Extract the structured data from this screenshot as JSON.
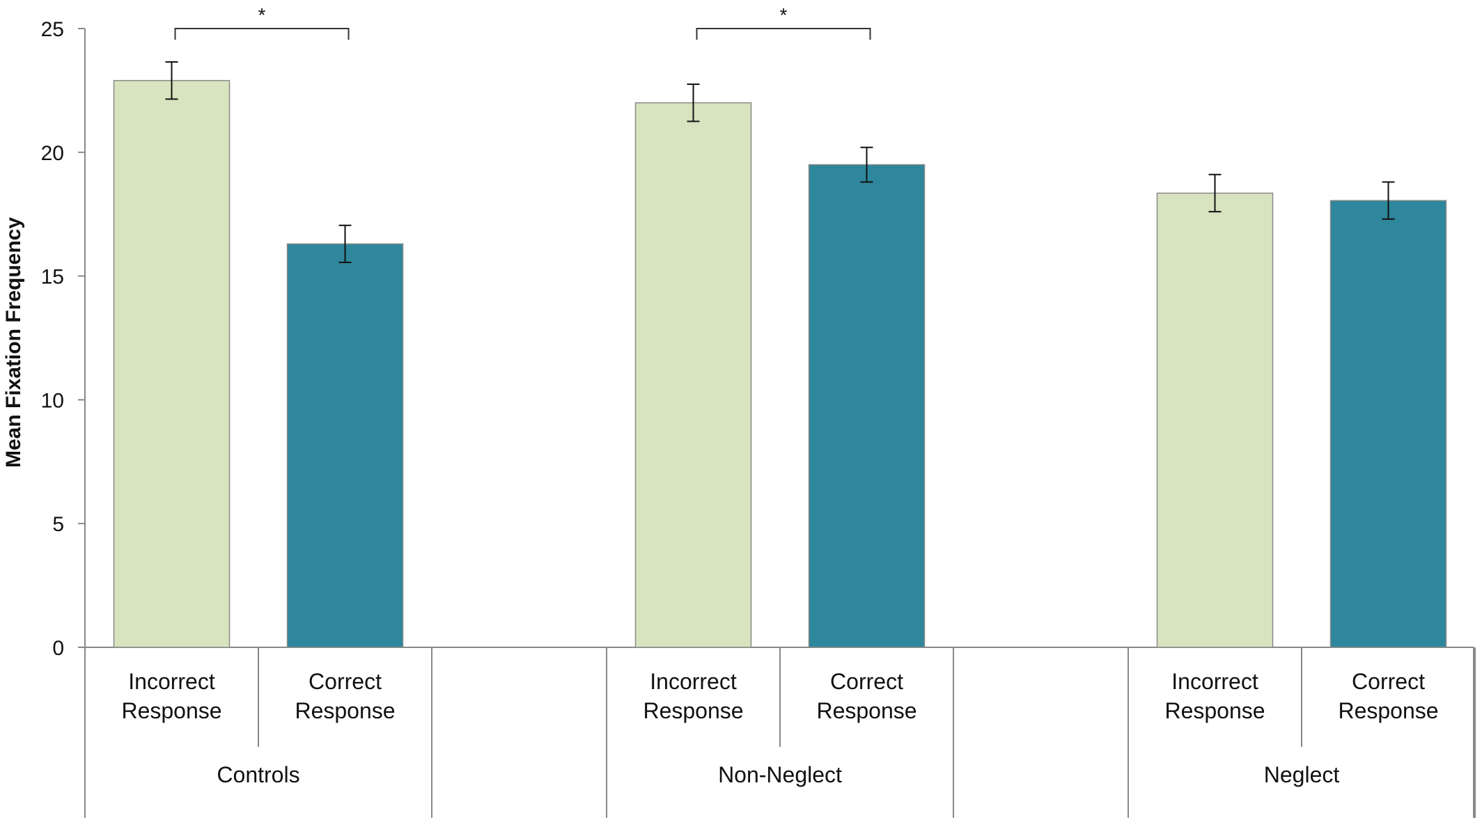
{
  "chart_data": {
    "type": "bar",
    "title": "",
    "xlabel": "",
    "ylabel": "Mean Fixation Frequency",
    "ylim": [
      0,
      25
    ],
    "yticks": [
      "0",
      "5",
      "10",
      "15",
      "20",
      "25"
    ],
    "grid": false,
    "legend": "none",
    "groups": [
      {
        "name": "Controls",
        "bars": [
          {
            "label_line1": "Incorrect",
            "label_line2": "Response",
            "value": 22.9,
            "error": 0.75,
            "color": "#d8e3bf"
          },
          {
            "label_line1": "Correct",
            "label_line2": "Response",
            "value": 16.3,
            "error": 0.75,
            "color": "#2e879c"
          }
        ],
        "significance": "*"
      },
      {
        "name": "Non-Neglect",
        "bars": [
          {
            "label_line1": "Incorrect",
            "label_line2": "Response",
            "value": 22.0,
            "error": 0.75,
            "color": "#d8e3bf"
          },
          {
            "label_line1": "Correct",
            "label_line2": "Response",
            "value": 19.5,
            "error": 0.7,
            "color": "#2e879c"
          }
        ],
        "significance": "*"
      },
      {
        "name": "Neglect",
        "bars": [
          {
            "label_line1": "Incorrect",
            "label_line2": "Response",
            "value": 18.35,
            "error": 0.75,
            "color": "#d8e3bf"
          },
          {
            "label_line1": "Correct",
            "label_line2": "Response",
            "value": 18.05,
            "error": 0.75,
            "color": "#2e879c"
          }
        ],
        "significance": ""
      }
    ]
  }
}
